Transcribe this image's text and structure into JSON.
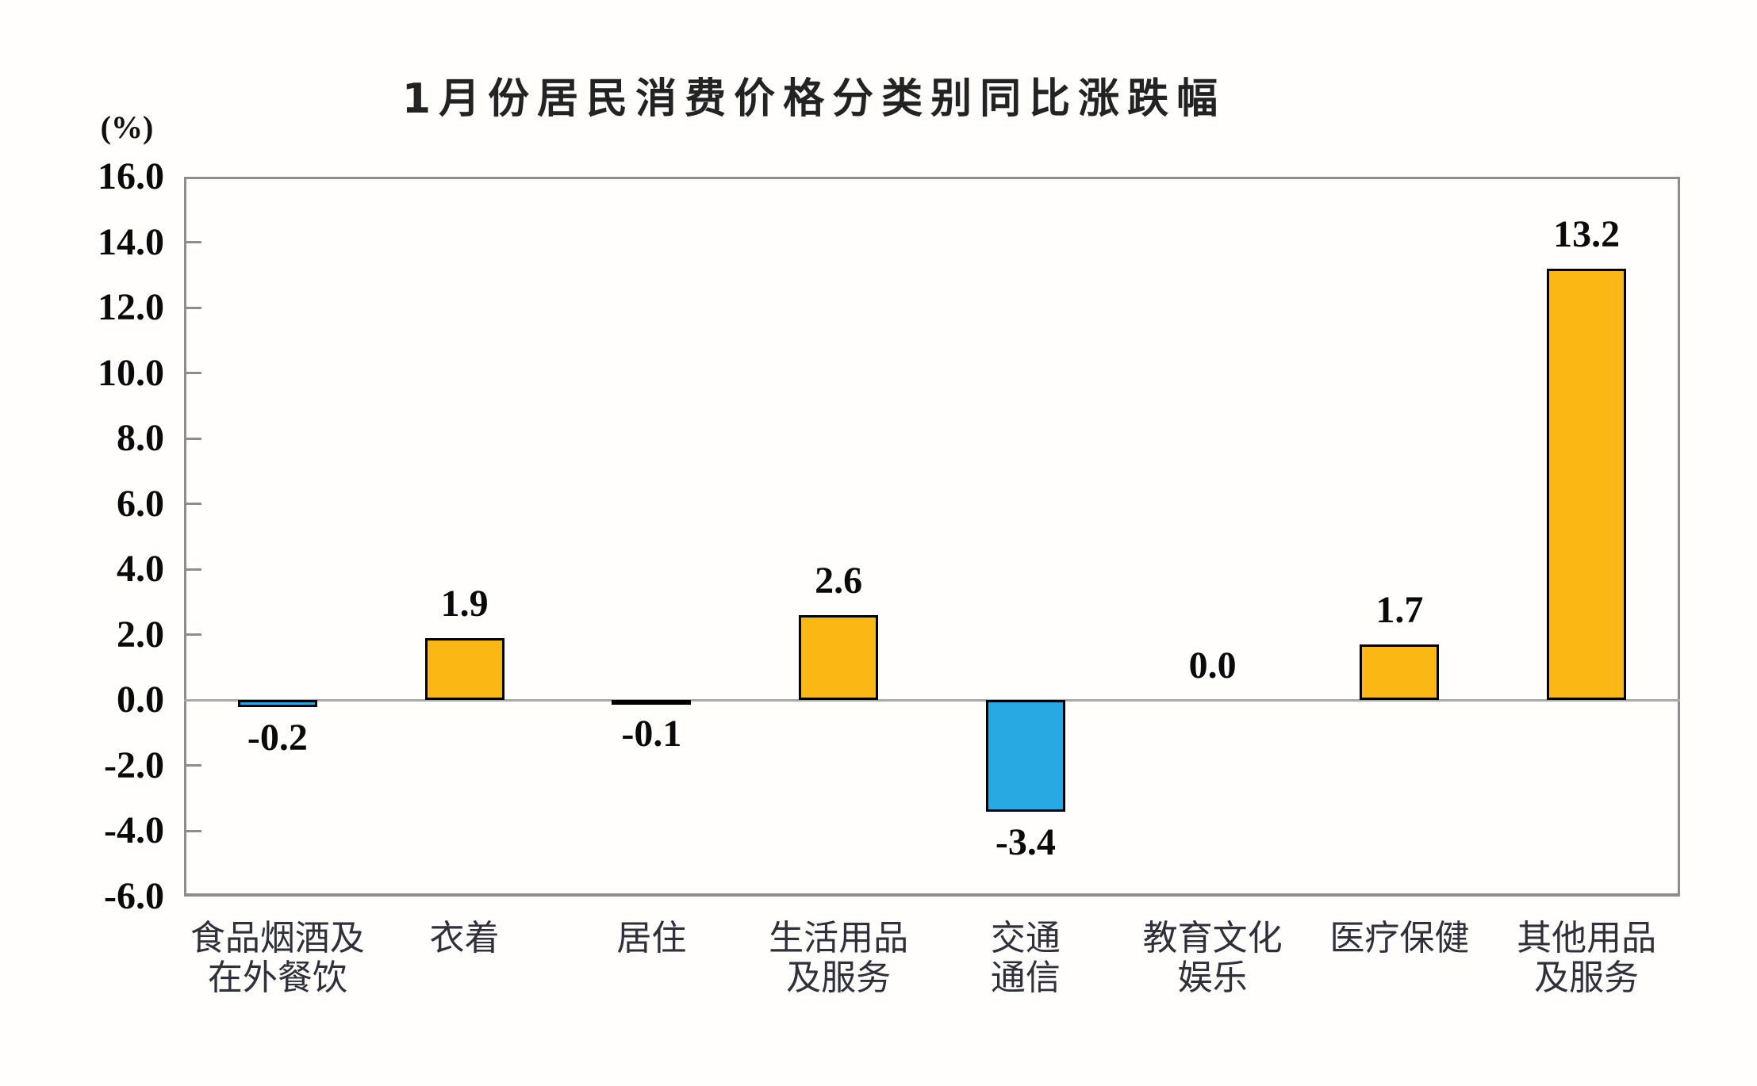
{
  "chart_data": {
    "type": "bar",
    "title": "1月份居民消费价格分类别同比涨跌幅",
    "unit_label": "(%)",
    "categories": [
      [
        "食品烟酒及",
        "在外餐饮"
      ],
      [
        "衣着"
      ],
      [
        "居住"
      ],
      [
        "生活用品",
        "及服务"
      ],
      [
        "交通",
        "通信"
      ],
      [
        "教育文化",
        "娱乐"
      ],
      [
        "医疗保健"
      ],
      [
        "其他用品",
        "及服务"
      ]
    ],
    "values": [
      -0.2,
      1.9,
      -0.1,
      2.6,
      -3.4,
      0.0,
      1.7,
      13.2
    ],
    "value_labels": [
      "-0.2",
      "1.9",
      "-0.1",
      "2.6",
      "-3.4",
      "0.0",
      "1.7",
      "13.2"
    ],
    "ylim": [
      -6.0,
      16.0
    ],
    "ytick_step": 2.0,
    "ytick_labels": [
      "16.0",
      "14.0",
      "12.0",
      "10.0",
      "8.0",
      "6.0",
      "4.0",
      "2.0",
      "0.0",
      "-2.0",
      "-4.0",
      "-6.0"
    ],
    "grid": false,
    "legend": "none",
    "colors": {
      "positive_bar": "#FBB713",
      "negative_bar": "#29A9E1",
      "bar_border": "#000000",
      "axis": "#8D8D8D",
      "zero_line": "#A9A9A9",
      "text": "#0A0A0A"
    }
  }
}
